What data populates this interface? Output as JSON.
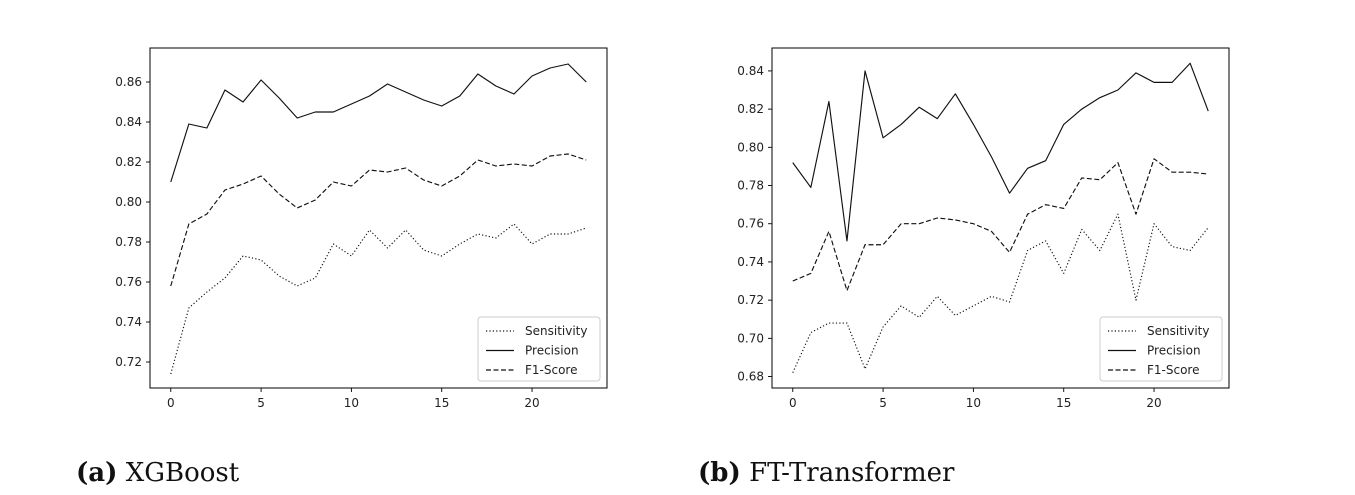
{
  "chart_data": [
    {
      "type": "line",
      "caption_label": "(a)",
      "caption_text": "XGBoost",
      "x": [
        0,
        1,
        2,
        3,
        4,
        5,
        6,
        7,
        8,
        9,
        10,
        11,
        12,
        13,
        14,
        15,
        16,
        17,
        18,
        19,
        20,
        21,
        22,
        23
      ],
      "xlim": [
        -1.15,
        24.15
      ],
      "ylim": [
        0.707,
        0.877
      ],
      "xticks": [
        0,
        5,
        10,
        15,
        20
      ],
      "yticks": [
        0.72,
        0.74,
        0.76,
        0.78,
        0.8,
        0.82,
        0.84,
        0.86
      ],
      "ytick_labels": [
        "0.72",
        "0.74",
        "0.76",
        "0.78",
        "0.80",
        "0.82",
        "0.84",
        "0.86"
      ],
      "grid": false,
      "legend_position": "lower-right",
      "series": [
        {
          "name": "Sensitivity",
          "style": "dotted",
          "values": [
            0.714,
            0.747,
            0.755,
            0.762,
            0.773,
            0.771,
            0.763,
            0.758,
            0.762,
            0.779,
            0.773,
            0.786,
            0.777,
            0.786,
            0.776,
            0.773,
            0.779,
            0.784,
            0.782,
            0.789,
            0.779,
            0.784,
            0.784,
            0.787
          ]
        },
        {
          "name": "Precision",
          "style": "solid",
          "values": [
            0.81,
            0.839,
            0.837,
            0.856,
            0.85,
            0.861,
            0.852,
            0.842,
            0.845,
            0.845,
            0.849,
            0.853,
            0.859,
            0.855,
            0.851,
            0.848,
            0.853,
            0.864,
            0.858,
            0.854,
            0.863,
            0.867,
            0.869,
            0.86
          ]
        },
        {
          "name": "F1-Score",
          "style": "dashed",
          "values": [
            0.758,
            0.789,
            0.794,
            0.806,
            0.809,
            0.813,
            0.804,
            0.797,
            0.801,
            0.81,
            0.808,
            0.816,
            0.815,
            0.817,
            0.811,
            0.808,
            0.813,
            0.821,
            0.818,
            0.819,
            0.818,
            0.823,
            0.824,
            0.821
          ]
        }
      ]
    },
    {
      "type": "line",
      "caption_label": "(b)",
      "caption_text": "FT-Transformer",
      "x": [
        0,
        1,
        2,
        3,
        4,
        5,
        6,
        7,
        8,
        9,
        10,
        11,
        12,
        13,
        14,
        15,
        16,
        17,
        18,
        19,
        20,
        21,
        22,
        23
      ],
      "xlim": [
        -1.15,
        24.15
      ],
      "ylim": [
        0.674,
        0.852
      ],
      "xticks": [
        0,
        5,
        10,
        15,
        20
      ],
      "yticks": [
        0.68,
        0.7,
        0.72,
        0.74,
        0.76,
        0.78,
        0.8,
        0.82,
        0.84
      ],
      "ytick_labels": [
        "0.68",
        "0.70",
        "0.72",
        "0.74",
        "0.76",
        "0.78",
        "0.80",
        "0.82",
        "0.84"
      ],
      "grid": false,
      "legend_position": "lower-right",
      "series": [
        {
          "name": "Sensitivity",
          "style": "dotted",
          "values": [
            0.682,
            0.703,
            0.708,
            0.708,
            0.684,
            0.706,
            0.717,
            0.711,
            0.722,
            0.712,
            0.717,
            0.722,
            0.719,
            0.746,
            0.751,
            0.734,
            0.757,
            0.746,
            0.765,
            0.72,
            0.76,
            0.748,
            0.746,
            0.758
          ]
        },
        {
          "name": "Precision",
          "style": "solid",
          "values": [
            0.792,
            0.779,
            0.824,
            0.751,
            0.84,
            0.805,
            0.812,
            0.821,
            0.815,
            0.828,
            0.812,
            0.795,
            0.776,
            0.789,
            0.793,
            0.812,
            0.82,
            0.826,
            0.83,
            0.839,
            0.834,
            0.834,
            0.844,
            0.819
          ]
        },
        {
          "name": "F1-Score",
          "style": "dashed",
          "values": [
            0.73,
            0.734,
            0.756,
            0.725,
            0.749,
            0.749,
            0.76,
            0.76,
            0.763,
            0.762,
            0.76,
            0.756,
            0.745,
            0.765,
            0.77,
            0.768,
            0.784,
            0.783,
            0.792,
            0.765,
            0.794,
            0.787,
            0.787,
            0.786
          ]
        }
      ]
    }
  ]
}
